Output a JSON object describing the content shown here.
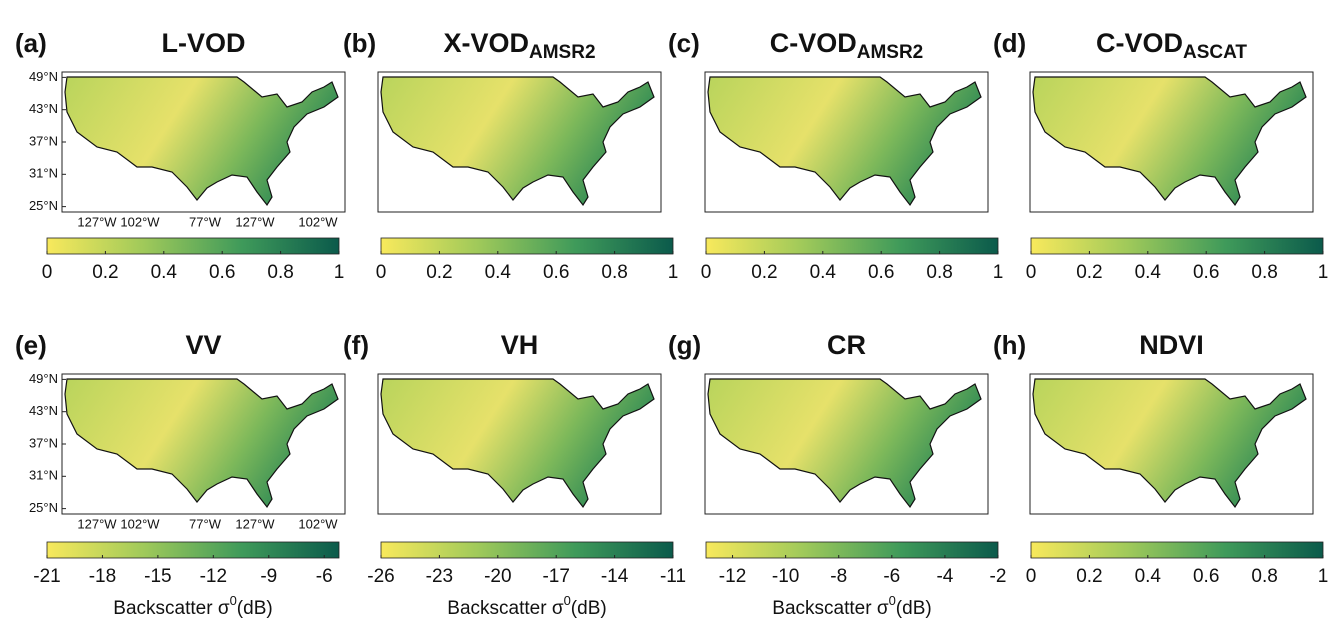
{
  "panels": [
    {
      "label": "(a)",
      "title": "L-VOD",
      "lat_ticks": [
        {
          "value": 49,
          "label": "49°N"
        },
        {
          "value": 43,
          "label": "43°N"
        },
        {
          "value": 37,
          "label": "37°N"
        },
        {
          "value": 31,
          "label": "31°N"
        },
        {
          "value": 25,
          "label": "25°N"
        }
      ],
      "lon_ticks": [
        "127°W",
        "102°W",
        "77°W",
        "127°W",
        "102°W"
      ],
      "colorbar": {
        "clim": [
          0,
          1
        ],
        "ticks": [
          0,
          0.2,
          0.4,
          0.6,
          0.8,
          1
        ]
      }
    },
    {
      "label": "(b)",
      "title": "X-VOD",
      "subscript": "AMSR2",
      "colorbar": {
        "clim": [
          0,
          1
        ],
        "ticks": [
          0,
          0.2,
          0.4,
          0.6,
          0.8,
          1
        ]
      }
    },
    {
      "label": "(c)",
      "title": "C-VOD",
      "subscript": "AMSR2",
      "colorbar": {
        "clim": [
          0,
          1
        ],
        "ticks": [
          0,
          0.2,
          0.4,
          0.6,
          0.8,
          1
        ]
      }
    },
    {
      "label": "(d)",
      "title": "C-VOD",
      "subscript": "ASCAT",
      "colorbar": {
        "clim": [
          0,
          1
        ],
        "ticks": [
          0,
          0.2,
          0.4,
          0.6,
          0.8,
          1
        ]
      }
    },
    {
      "label": "(e)",
      "title": "VV",
      "lat_ticks": [
        {
          "value": 49,
          "label": "49°N"
        },
        {
          "value": 43,
          "label": "43°N"
        },
        {
          "value": 37,
          "label": "37°N"
        },
        {
          "value": 31,
          "label": "31°N"
        },
        {
          "value": 25,
          "label": "25°N"
        }
      ],
      "lon_ticks": [
        "127°W",
        "102°W",
        "77°W",
        "127°W",
        "102°W"
      ],
      "colorbar": {
        "clim": [
          -21,
          -5.2
        ],
        "ticks": [
          -21,
          -18,
          -15,
          -12,
          -9,
          -6
        ],
        "label": [
          "Backscatter σ",
          "0",
          "(dB)"
        ]
      }
    },
    {
      "label": "(f)",
      "title": "VH",
      "colorbar": {
        "clim": [
          -26,
          -11
        ],
        "ticks": [
          -26,
          -23,
          -20,
          -17,
          -14,
          -11
        ],
        "label": [
          "Backscatter σ",
          "0",
          "(dB)"
        ]
      }
    },
    {
      "label": "(g)",
      "title": "CR",
      "colorbar": {
        "clim": [
          -13,
          -2
        ],
        "ticks": [
          -12,
          -10,
          -8,
          -6,
          -4,
          -2
        ],
        "label": [
          "Backscatter σ",
          "0",
          "(dB)"
        ]
      }
    },
    {
      "label": "(h)",
      "title": "NDVI",
      "colorbar": {
        "clim": [
          0,
          1
        ],
        "ticks": [
          0,
          0.2,
          0.4,
          0.6,
          0.8,
          1
        ]
      }
    }
  ],
  "map_ylim": [
    24,
    50
  ],
  "colormap": [
    "#f8e95c",
    "#9fc95a",
    "#3f9a5a",
    "#0b5a4b"
  ]
}
